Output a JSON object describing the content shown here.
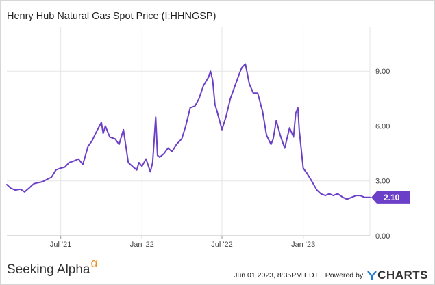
{
  "chart_data": {
    "type": "line",
    "title": "Henry Hub Natural Gas Spot Price (I:HHNGSP)",
    "xlabel": "",
    "ylabel": "",
    "x_ticks": [
      "Jul '21",
      "Jan '22",
      "Jul '22",
      "Jan '23"
    ],
    "x_range": [
      "2021-03-01",
      "2023-06-01"
    ],
    "y_ticks": [
      "0.00",
      "3.00",
      "6.00",
      "9.00"
    ],
    "ylim": [
      0,
      11.4
    ],
    "grid": true,
    "series_color": "#6b3fc7",
    "last_value_label": "2.10",
    "series": [
      {
        "x": [
          "2021-03-01",
          "2021-03-10",
          "2021-03-20",
          "2021-04-01",
          "2021-04-10",
          "2021-04-20",
          "2021-05-01",
          "2021-05-10",
          "2021-05-20",
          "2021-06-01",
          "2021-06-10",
          "2021-06-20",
          "2021-07-01",
          "2021-07-10",
          "2021-07-20",
          "2021-08-01",
          "2021-08-10",
          "2021-08-20",
          "2021-09-01",
          "2021-09-10",
          "2021-09-20",
          "2021-10-01",
          "2021-10-05",
          "2021-10-10",
          "2021-10-20",
          "2021-11-01",
          "2021-11-10",
          "2021-11-20",
          "2021-12-01",
          "2021-12-10",
          "2021-12-20",
          "2021-12-25",
          "2022-01-01",
          "2022-01-10",
          "2022-01-20",
          "2022-01-25",
          "2022-02-01",
          "2022-02-05",
          "2022-02-10",
          "2022-02-20",
          "2022-03-01",
          "2022-03-10",
          "2022-03-20",
          "2022-04-01",
          "2022-04-10",
          "2022-04-20",
          "2022-05-01",
          "2022-05-10",
          "2022-05-20",
          "2022-06-01",
          "2022-06-05",
          "2022-06-10",
          "2022-06-15",
          "2022-06-20",
          "2022-07-01",
          "2022-07-10",
          "2022-07-20",
          "2022-08-01",
          "2022-08-10",
          "2022-08-15",
          "2022-08-23",
          "2022-09-01",
          "2022-09-10",
          "2022-09-20",
          "2022-10-01",
          "2022-10-10",
          "2022-10-20",
          "2022-10-25",
          "2022-11-01",
          "2022-11-10",
          "2022-11-20",
          "2022-12-01",
          "2022-12-10",
          "2022-12-15",
          "2022-12-20",
          "2022-12-23",
          "2023-01-01",
          "2023-01-10",
          "2023-01-20",
          "2023-02-01",
          "2023-02-10",
          "2023-02-20",
          "2023-03-01",
          "2023-03-10",
          "2023-03-20",
          "2023-04-01",
          "2023-04-10",
          "2023-04-20",
          "2023-05-01",
          "2023-05-10",
          "2023-05-20",
          "2023-06-01"
        ],
        "y": [
          2.8,
          2.6,
          2.5,
          2.55,
          2.4,
          2.6,
          2.85,
          2.9,
          2.95,
          3.1,
          3.2,
          3.6,
          3.7,
          3.75,
          4.0,
          4.1,
          4.2,
          3.9,
          4.9,
          5.2,
          5.7,
          6.2,
          5.6,
          6.0,
          5.4,
          5.3,
          5.0,
          5.8,
          4.0,
          3.8,
          3.6,
          4.0,
          3.8,
          4.2,
          3.5,
          4.0,
          6.5,
          4.4,
          4.3,
          4.5,
          4.8,
          4.6,
          5.0,
          5.3,
          6.0,
          7.0,
          7.1,
          7.5,
          8.2,
          8.7,
          9.0,
          8.5,
          7.2,
          6.8,
          5.8,
          6.5,
          7.5,
          8.3,
          8.9,
          9.2,
          9.4,
          8.3,
          7.8,
          7.8,
          6.8,
          5.5,
          5.0,
          5.3,
          6.3,
          5.5,
          4.8,
          5.9,
          5.4,
          6.7,
          7.0,
          5.8,
          3.7,
          3.4,
          3.0,
          2.5,
          2.3,
          2.2,
          2.3,
          2.2,
          2.3,
          2.1,
          2.0,
          2.1,
          2.2,
          2.2,
          2.1,
          2.1
        ]
      }
    ]
  },
  "footer": {
    "brand": "Seeking Alpha",
    "brand_mark": "α",
    "timestamp": "Jun 01 2023, 8:35PM EDT.",
    "powered_by": "Powered by",
    "provider": "YCHARTS"
  }
}
